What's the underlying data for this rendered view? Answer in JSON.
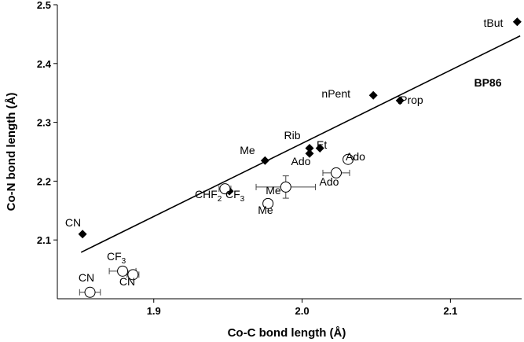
{
  "chart_data": {
    "type": "scatter",
    "title": "",
    "xlabel": "Co-C bond length (Å)",
    "ylabel": "Co-N bond length (Å)",
    "xlim": [
      1.835,
      2.148
    ],
    "ylim": [
      2.0,
      2.5
    ],
    "x_ticks": [
      "1.9",
      "2.0",
      "2.1"
    ],
    "y_ticks": [
      "2.1",
      "2.2",
      "2.3",
      "2.4",
      "2.5"
    ],
    "grid": false,
    "series": [
      {
        "marker": "filled-diamond",
        "color": "#000000",
        "points": [
          {
            "label": "CN",
            "x": 1.852,
            "y": 2.11
          },
          {
            "label": "Me",
            "x": 1.975,
            "y": 2.235
          },
          {
            "label": "Rib",
            "x": 2.005,
            "y": 2.256
          },
          {
            "label": "Ado",
            "x": 2.005,
            "y": 2.247
          },
          {
            "label": "Et",
            "x": 2.012,
            "y": 2.256
          },
          {
            "label": "nPent",
            "x": 2.048,
            "y": 2.346
          },
          {
            "label": "iProp",
            "x": 2.066,
            "y": 2.337
          },
          {
            "label": "tBut",
            "x": 2.145,
            "y": 2.471
          },
          {
            "label": "",
            "x": 1.951,
            "y": 2.183
          }
        ]
      },
      {
        "marker": "open-circle",
        "color": "#000000",
        "points": [
          {
            "label": "CN",
            "x": 1.857,
            "y": 2.011,
            "xerr": 0.007
          },
          {
            "label": "CF3",
            "x": 1.879,
            "y": 2.047,
            "xerr": 0.009
          },
          {
            "label": "CN",
            "x": 1.886,
            "y": 2.041,
            "xerr": 0.004
          },
          {
            "label": "CHF2",
            "x": 1.948,
            "y": 2.187,
            "xerr": 0.004
          },
          {
            "label": "Me",
            "x": 1.977,
            "y": 2.162,
            "xerr": 0.003
          },
          {
            "label": "Me",
            "x": 1.989,
            "y": 2.19,
            "xerr": 0.02,
            "yerr": 0.019
          },
          {
            "label": "Ado",
            "x": 2.023,
            "y": 2.214,
            "xerr": 0.009
          },
          {
            "label": "Ado",
            "x": 2.031,
            "y": 2.237
          }
        ]
      }
    ],
    "fit_line": {
      "label": "BP86",
      "x": [
        1.851,
        2.147
      ],
      "y": [
        2.079,
        2.447
      ]
    }
  }
}
